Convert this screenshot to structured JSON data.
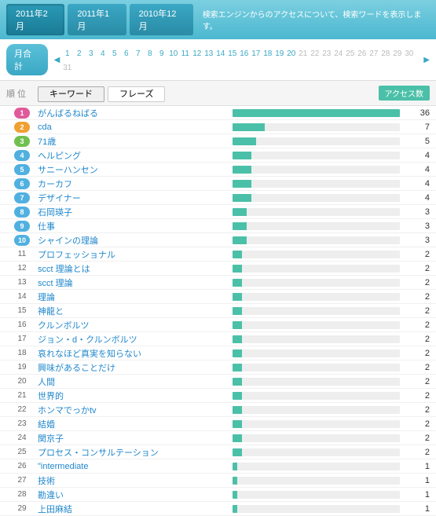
{
  "topTabs": [
    {
      "label": "2011年2月",
      "active": true
    },
    {
      "label": "2011年1月",
      "active": false
    },
    {
      "label": "2010年12月",
      "active": false
    }
  ],
  "description": "検索エンジンからのアクセスについて、検索ワードを表示します。",
  "totalLabel": "月合計",
  "days": {
    "start": 1,
    "end": 31,
    "enabledTo": 20
  },
  "columns": {
    "rank": "順 位",
    "access": "アクセス数"
  },
  "filterTabs": [
    {
      "label": "キーワード",
      "active": true
    },
    {
      "label": "フレーズ",
      "active": false
    }
  ],
  "maxCount": 36,
  "badgeColors": [
    "#e05a9a",
    "#f0a030",
    "#70c050",
    "#50b0e0",
    "#50b0e0",
    "#50b0e0",
    "#50b0e0",
    "#50b0e0",
    "#50b0e0",
    "#50b0e0"
  ],
  "rows": [
    {
      "rank": 1,
      "keyword": "がんばるねばる",
      "count": 36
    },
    {
      "rank": 2,
      "keyword": "cda",
      "count": 7
    },
    {
      "rank": 3,
      "keyword": "71歳",
      "count": 5
    },
    {
      "rank": 4,
      "keyword": "ヘルピング",
      "count": 4
    },
    {
      "rank": 5,
      "keyword": "サニーハンセン",
      "count": 4
    },
    {
      "rank": 6,
      "keyword": "カーカフ",
      "count": 4
    },
    {
      "rank": 7,
      "keyword": "デザイナー",
      "count": 4
    },
    {
      "rank": 8,
      "keyword": "石岡瑛子",
      "count": 3
    },
    {
      "rank": 9,
      "keyword": "仕事",
      "count": 3
    },
    {
      "rank": 10,
      "keyword": "シャインの理論",
      "count": 3
    },
    {
      "rank": 11,
      "keyword": "プロフェッショナル",
      "count": 2
    },
    {
      "rank": 12,
      "keyword": "scct 理論とは",
      "count": 2
    },
    {
      "rank": 13,
      "keyword": "scct 理論",
      "count": 2
    },
    {
      "rank": 14,
      "keyword": "理論",
      "count": 2
    },
    {
      "rank": 15,
      "keyword": "神龍と",
      "count": 2
    },
    {
      "rank": 16,
      "keyword": "クルンボルツ",
      "count": 2
    },
    {
      "rank": 17,
      "keyword": "ジョン・d・クルンボルツ",
      "count": 2
    },
    {
      "rank": 18,
      "keyword": "哀れなほど真実を知らない",
      "count": 2
    },
    {
      "rank": 19,
      "keyword": "興味があることだけ",
      "count": 2
    },
    {
      "rank": 20,
      "keyword": "人間",
      "count": 2
    },
    {
      "rank": 21,
      "keyword": "世界的",
      "count": 2
    },
    {
      "rank": 22,
      "keyword": "ホンマでっかtv",
      "count": 2
    },
    {
      "rank": 23,
      "keyword": "結婚",
      "count": 2
    },
    {
      "rank": 24,
      "keyword": "関京子",
      "count": 2
    },
    {
      "rank": 25,
      "keyword": "プロセス・コンサルテーション",
      "count": 2
    },
    {
      "rank": 26,
      "keyword": "\"intermediate",
      "count": 1
    },
    {
      "rank": 27,
      "keyword": "技術",
      "count": 1
    },
    {
      "rank": 28,
      "keyword": "勘違い",
      "count": 1
    },
    {
      "rank": 29,
      "keyword": "上田麻結",
      "count": 1
    }
  ]
}
